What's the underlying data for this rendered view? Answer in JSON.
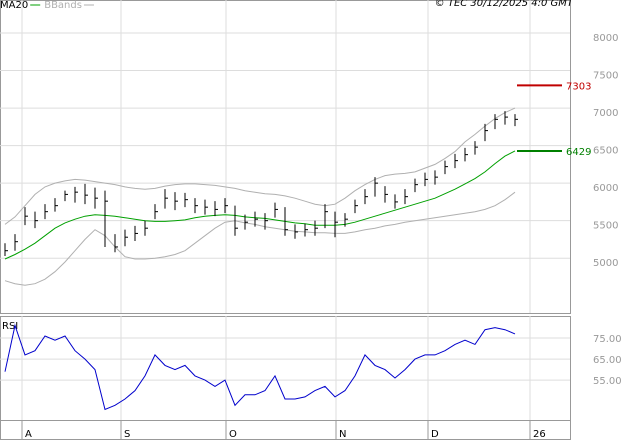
{
  "chart_data": [
    {
      "type": "ohlc",
      "copyright": "© TEC 30/12/2025 4:0 GMT",
      "color": "#000000",
      "x": [
        0,
        1,
        2,
        3,
        4,
        5,
        6,
        7,
        8,
        9,
        10,
        11,
        12,
        13,
        14,
        15,
        16,
        17,
        18,
        19,
        20,
        21,
        22,
        23,
        24,
        25,
        26,
        27,
        28,
        29,
        30,
        31,
        32,
        33,
        34,
        35,
        36,
        37,
        38,
        39,
        40,
        41,
        42,
        43,
        44,
        45,
        46,
        47,
        48,
        49,
        50,
        51
      ],
      "high": [
        5200,
        5320,
        5680,
        5620,
        5720,
        5800,
        5900,
        5950,
        5990,
        5940,
        5900,
        5320,
        5380,
        5430,
        5500,
        5720,
        5920,
        5880,
        5870,
        5800,
        5780,
        5760,
        5800,
        5700,
        5580,
        5620,
        5600,
        5740,
        5680,
        5450,
        5460,
        5500,
        5720,
        5620,
        5600,
        5780,
        5920,
        6080,
        5960,
        5850,
        5920,
        6060,
        6140,
        6170,
        6300,
        6390,
        6470,
        6560,
        6790,
        6920,
        6960,
        6920
      ],
      "low": [
        5030,
        5100,
        5440,
        5400,
        5520,
        5620,
        5760,
        5740,
        5720,
        5660,
        5150,
        5080,
        5160,
        5230,
        5300,
        5520,
        5660,
        5640,
        5680,
        5600,
        5580,
        5560,
        5600,
        5300,
        5380,
        5420,
        5380,
        5540,
        5300,
        5260,
        5290,
        5300,
        5400,
        5280,
        5420,
        5600,
        5720,
        5820,
        5740,
        5660,
        5720,
        5880,
        5960,
        5980,
        6120,
        6200,
        6290,
        6380,
        6560,
        6720,
        6780,
        6760
      ],
      "close": [
        5100,
        5220,
        5560,
        5500,
        5620,
        5700,
        5850,
        5880,
        5840,
        5800,
        5760,
        5150,
        5280,
        5330,
        5400,
        5620,
        5800,
        5760,
        5780,
        5700,
        5680,
        5650,
        5700,
        5400,
        5480,
        5520,
        5500,
        5650,
        5380,
        5350,
        5380,
        5400,
        5620,
        5480,
        5520,
        5700,
        5820,
        6000,
        5850,
        5750,
        5820,
        5980,
        6050,
        6080,
        6220,
        6300,
        6380,
        6480,
        6700,
        6850,
        6880,
        6850
      ],
      "overlays": [
        {
          "name": "MA20",
          "type": "line",
          "color": "#00a000",
          "values": [
            4990,
            5050,
            5120,
            5200,
            5300,
            5400,
            5470,
            5520,
            5560,
            5580,
            5570,
            5560,
            5540,
            5520,
            5500,
            5490,
            5490,
            5500,
            5510,
            5540,
            5560,
            5570,
            5580,
            5570,
            5550,
            5540,
            5530,
            5510,
            5490,
            5470,
            5460,
            5440,
            5440,
            5440,
            5450,
            5480,
            5520,
            5560,
            5600,
            5640,
            5680,
            5720,
            5760,
            5800,
            5860,
            5920,
            5990,
            6060,
            6150,
            6260,
            6360,
            6429
          ]
        },
        {
          "name": "BBands",
          "type": "band",
          "color": "#b0b0b0",
          "upper": [
            5450,
            5550,
            5700,
            5850,
            5950,
            6000,
            6030,
            6050,
            6040,
            6020,
            6000,
            5980,
            5950,
            5930,
            5920,
            5930,
            5960,
            5980,
            5990,
            5990,
            5980,
            5970,
            5950,
            5930,
            5900,
            5880,
            5860,
            5850,
            5830,
            5800,
            5760,
            5720,
            5700,
            5720,
            5800,
            5900,
            5980,
            6050,
            6100,
            6120,
            6130,
            6150,
            6200,
            6250,
            6330,
            6420,
            6550,
            6650,
            6760,
            6860,
            6940,
            7000
          ],
          "lower": [
            4700,
            4660,
            4640,
            4660,
            4720,
            4820,
            4950,
            5100,
            5250,
            5380,
            5300,
            5150,
            5020,
            4990,
            4990,
            5000,
            5020,
            5050,
            5100,
            5200,
            5300,
            5400,
            5480,
            5500,
            5470,
            5450,
            5420,
            5400,
            5380,
            5360,
            5350,
            5340,
            5340,
            5330,
            5330,
            5350,
            5380,
            5400,
            5430,
            5450,
            5480,
            5500,
            5520,
            5540,
            5560,
            5580,
            5600,
            5620,
            5650,
            5700,
            5780,
            5880
          ]
        }
      ],
      "levels": [
        {
          "value": 7303,
          "color": "#c00000"
        },
        {
          "value": 6429,
          "color": "#008000"
        }
      ],
      "ylim": [
        4270,
        8440
      ],
      "yticks": [
        5000,
        5500,
        6000,
        6500,
        7000,
        7500,
        8000
      ],
      "xlim": [
        -0.5,
        56.5
      ],
      "xticks": [
        {
          "value": 1.7,
          "label": "A"
        },
        {
          "value": 11.6,
          "label": "S"
        },
        {
          "value": 22.1,
          "label": "O"
        },
        {
          "value": 33.1,
          "label": "N"
        },
        {
          "value": 42.3,
          "label": "D"
        },
        {
          "value": 52.5,
          "label": "26"
        }
      ],
      "grid": true
    },
    {
      "type": "line",
      "title": "RSI",
      "color": "#0000cc",
      "values": [
        59,
        81,
        67,
        69,
        76,
        74,
        76,
        69,
        65,
        60,
        41,
        43,
        46,
        50,
        57,
        67,
        62,
        60,
        62,
        57,
        55,
        52,
        55,
        43,
        48,
        48,
        50,
        57,
        46,
        46,
        47,
        50,
        52,
        47,
        50,
        57,
        67,
        62,
        60,
        56,
        60,
        65,
        67,
        67,
        69,
        72,
        74,
        72,
        79,
        80,
        79,
        77
      ],
      "ylim": [
        36,
        85.5
      ],
      "yticks": [
        {
          "value": 55,
          "label": "55.00"
        },
        {
          "value": 65,
          "label": "65.00"
        },
        {
          "value": 75,
          "label": "75.00"
        }
      ],
      "grid": true
    }
  ]
}
